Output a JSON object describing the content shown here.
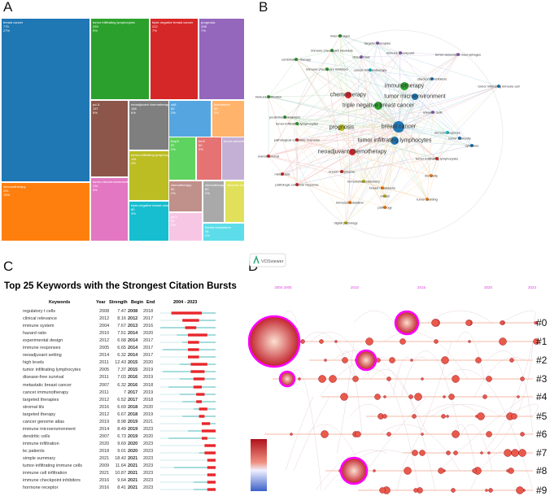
{
  "panels": {
    "a": "A",
    "b": "B",
    "c": "C",
    "d": "D"
  },
  "chart_data": [
    {
      "type": "treemap",
      "panel": "A",
      "items": [
        {
          "label": "breast cancer",
          "count": "775",
          "pct": "27%",
          "color": "#1f77b4"
        },
        {
          "label": "immunotherapy",
          "count": "291",
          "pct": "10%",
          "color": "#ff7f0e"
        },
        {
          "label": "tumor infiltrating lymphocytes",
          "count": "259",
          "pct": "9%",
          "color": "#2ca02c"
        },
        {
          "label": "triple negative breast cancer",
          "count": "212",
          "pct": "7%",
          "color": "#d62728"
        },
        {
          "label": "prognosis",
          "count": "208",
          "pct": "7%",
          "color": "#9467bd"
        },
        {
          "label": "pd-l1",
          "count": "157",
          "pct": "5%",
          "color": "#8c564b"
        },
        {
          "label": "tumor microenvironment",
          "count": "131",
          "pct": "5%",
          "color": "#e377c2"
        },
        {
          "label": "neoadjuvant chemotherapy",
          "count": "168",
          "pct": "6%",
          "color": "#7f7f7f"
        },
        {
          "label": "tumor-infiltrating lymphocytes",
          "count": "118",
          "pct": "4%",
          "color": "#bcbd22"
        },
        {
          "label": "triple-negative breast cancer",
          "count": "80",
          "pct": "3%",
          "color": "#17becf"
        },
        {
          "label": "cd8",
          "count": "62",
          "pct": "2%",
          "color": "#55a6e0"
        },
        {
          "label": "biomarkers",
          "count": "58",
          "pct": "2%",
          "color": "#ffb36b"
        },
        {
          "label": "foxp3",
          "count": "57",
          "pct": "2%",
          "color": "#5fd35f"
        },
        {
          "label": "her2",
          "count": "60",
          "pct": "2%",
          "color": "#e57373"
        },
        {
          "label": "tumor-associated macrophages",
          "count": "",
          "pct": "",
          "color": "#c5b0d5"
        },
        {
          "label": "chemotherapy",
          "count": "60",
          "pct": "2%",
          "color": "#c0908a"
        },
        {
          "label": "pd-1",
          "count": "52",
          "pct": "2%",
          "color": "#f7c6e4"
        },
        {
          "label": "chemotherapy",
          "count": "60",
          "pct": "2%",
          "color": "#a9a9a9"
        },
        {
          "label": "immune checkpoint",
          "count": "",
          "pct": "",
          "color": "#e0e05a"
        },
        {
          "label": "breast neoplasms",
          "count": "46",
          "pct": "2%",
          "color": "#5ddde9"
        }
      ]
    },
    {
      "type": "network",
      "panel": "B",
      "software": "VOSviewer",
      "nodes": [
        {
          "label": "macrophages",
          "color": "#2ca02c"
        },
        {
          "label": "targeted therapies",
          "color": "#9467bd"
        },
        {
          "label": "immune checkpoint blockade",
          "color": "#2ca02c"
        },
        {
          "label": "immune checkpoint",
          "color": "#9467bd"
        },
        {
          "label": "combination therapy",
          "color": "#2ca02c"
        },
        {
          "label": "clinical trials",
          "color": "#9467bd"
        },
        {
          "label": "tumor-associated macrophages",
          "color": "#9467bd"
        },
        {
          "label": "immune checkpoint inhibitors",
          "color": "#2ca02c"
        },
        {
          "label": "cancer immunotherapy",
          "color": "#17becf"
        },
        {
          "label": "immunotherapy",
          "color": "#2ca02c"
        },
        {
          "label": "checkpoint inhibitors",
          "color": "#1f77b4"
        },
        {
          "label": "tumor infiltrating immune cell",
          "color": "#1f77b4"
        },
        {
          "label": "tumor microenvironment",
          "color": "#1f77b4"
        },
        {
          "label": "immune infiltration",
          "color": "#2ca02c"
        },
        {
          "label": "chemotherapy",
          "color": "#d62728"
        },
        {
          "label": "triple negative breast cancer",
          "color": "#2ca02c"
        },
        {
          "label": "prognosis",
          "color": "#bcbd22"
        },
        {
          "label": "breast cancer",
          "color": "#1f77b4"
        },
        {
          "label": "immune cells",
          "color": "#9467bd"
        },
        {
          "label": "tumor infiltrating lymphocytes",
          "color": "#1f77b4"
        },
        {
          "label": "predictive biomarkers",
          "color": "#2ca02c"
        },
        {
          "label": "tumor-infiltrating lymphocytes",
          "color": "#2ca02c"
        },
        {
          "label": "pathological complete response",
          "color": "#d62728"
        },
        {
          "label": "tumor-infiltrating lymphocytes",
          "color": "#d62728"
        },
        {
          "label": "neoadjuvant chemotherapy",
          "color": "#d62728"
        },
        {
          "label": "overall survival",
          "color": "#d62728"
        },
        {
          "label": "breast neoplasms",
          "color": "#d62728"
        },
        {
          "label": "metastasis",
          "color": "#d62728"
        },
        {
          "label": "immunohistochemistry",
          "color": "#bcbd22"
        },
        {
          "label": "breast neoplasms",
          "color": "#ff7f0e"
        },
        {
          "label": "pathologic complete response",
          "color": "#d62728"
        },
        {
          "label": "breast",
          "color": "#bcbd22"
        },
        {
          "label": "immunomodulation",
          "color": "#ff7f0e"
        },
        {
          "label": "pathology",
          "color": "#ff7f0e"
        },
        {
          "label": "tumor immunity",
          "color": "#1f77b4"
        },
        {
          "label": "cytokines",
          "color": "#1f77b4"
        },
        {
          "label": "immune response",
          "color": "#17becf"
        },
        {
          "label": "immunity",
          "color": "#ff7f0e"
        },
        {
          "label": "digital pathology",
          "color": "#bcbd22"
        },
        {
          "label": "tumor budding",
          "color": "#ff7f0e"
        }
      ]
    },
    {
      "type": "table",
      "panel": "C",
      "title": "Top 25 Keywords with the Strongest Citation Bursts",
      "columns": [
        "Keywords",
        "Year",
        "Strength",
        "Begin",
        "End",
        "2004 - 2023"
      ],
      "range": [
        2004,
        2023
      ],
      "rows": [
        [
          "regulatory t cells",
          "2008",
          "7.47",
          "2008",
          "2018"
        ],
        [
          "clinical relevance",
          "2012",
          "8.16",
          "2012",
          "2017"
        ],
        [
          "immune system",
          "2004",
          "7.67",
          "2013",
          "2016"
        ],
        [
          "hazard ratio",
          "2010",
          "7.51",
          "2014",
          "2020"
        ],
        [
          "experimental design",
          "2012",
          "6.68",
          "2014",
          "2017"
        ],
        [
          "immune responses",
          "2005",
          "6.65",
          "2014",
          "2017"
        ],
        [
          "neoadjuvant setting",
          "2014",
          "6.32",
          "2014",
          "2017"
        ],
        [
          "high levels",
          "2011",
          "12.43",
          "2015",
          "2020"
        ],
        [
          "tumor infiltrating lymphocytes",
          "2005",
          "7.37",
          "2015",
          "2019"
        ],
        [
          "disease-free survival",
          "2011",
          "7.03",
          "2016",
          "2019"
        ],
        [
          "metastatic breast cancer",
          "2007",
          "6.32",
          "2016",
          "2018"
        ],
        [
          "cancer immunotherapy",
          "2011",
          "7",
          "2017",
          "2019"
        ],
        [
          "targeted therapies",
          "2012",
          "6.52",
          "2017",
          "2018"
        ],
        [
          "stromal tils",
          "2016",
          "6.69",
          "2018",
          "2020"
        ],
        [
          "targeted therapy",
          "2012",
          "6.67",
          "2018",
          "2019"
        ],
        [
          "cancer genome atlas",
          "2019",
          "8.98",
          "2019",
          "2021"
        ],
        [
          "immune microenvironment",
          "2014",
          "8.49",
          "2019",
          "2023"
        ],
        [
          "dendritic cells",
          "2007",
          "6.73",
          "2019",
          "2020"
        ],
        [
          "immune infiltration",
          "2020",
          "9.69",
          "2020",
          "2023"
        ],
        [
          "bc patients",
          "2018",
          "9.01",
          "2020",
          "2023"
        ],
        [
          "simple summary",
          "2021",
          "18.42",
          "2021",
          "2023"
        ],
        [
          "tumor-infiltrating immune cells",
          "2009",
          "11.64",
          "2021",
          "2023"
        ],
        [
          "immune cell infiltration",
          "2021",
          "10.87",
          "2021",
          "2023"
        ],
        [
          "immune checkpoint inhibitors",
          "2016",
          "9.64",
          "2021",
          "2023"
        ],
        [
          "hormone receptor",
          "2016",
          "8.41",
          "2021",
          "2023"
        ]
      ],
      "colors": {
        "burst": "#e8262b",
        "active": "#4bb8b8",
        "inactive": "#cfe9ea"
      }
    },
    {
      "type": "timeline",
      "panel": "D",
      "x_ticks": [
        "2004 2005",
        "2010",
        "2015",
        "2020",
        "2023"
      ],
      "clusters": [
        "#0",
        "#1",
        "#2",
        "#3",
        "#4",
        "#5",
        "#6",
        "#7",
        "#8",
        "#9"
      ],
      "colors": {
        "ticks": "#e040e0",
        "highlight": "#ff00ff",
        "node": "#d0312d"
      }
    }
  ]
}
